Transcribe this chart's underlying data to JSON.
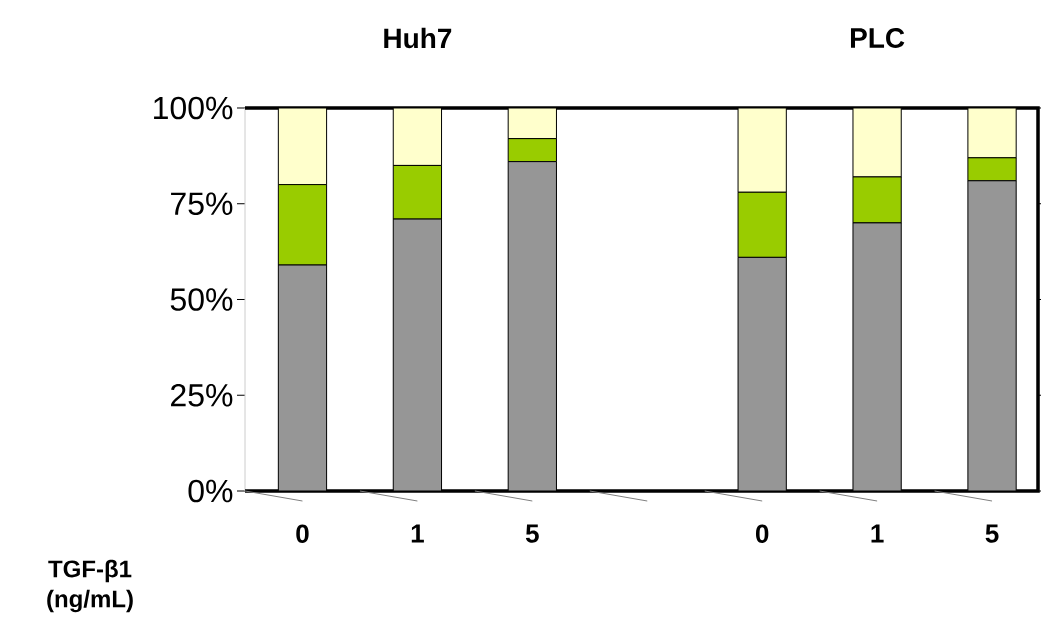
{
  "chart_data": {
    "type": "bar",
    "stacked": true,
    "xlabel": "TGF-β1 (ng/mL)",
    "categories": [
      "0",
      "1",
      "5",
      null,
      "0",
      "1",
      "5"
    ],
    "series": [
      {
        "color": "#969696",
        "values": [
          59,
          71,
          86,
          null,
          61,
          70,
          81
        ]
      },
      {
        "color": "#99cc00",
        "values": [
          21,
          14,
          6,
          null,
          17,
          12,
          6
        ]
      },
      {
        "color": "#ffffcc",
        "values": [
          20,
          15,
          8,
          null,
          22,
          18,
          13
        ]
      }
    ],
    "ylim": [
      0,
      100
    ],
    "yticks": [
      {
        "value": 0,
        "label": "0%"
      },
      {
        "value": 25,
        "label": "25%"
      },
      {
        "value": 50,
        "label": "50%"
      },
      {
        "value": 75,
        "label": "75%"
      },
      {
        "value": 100,
        "label": "100%"
      }
    ],
    "annotations": [
      "Huh7",
      "PLC"
    ]
  }
}
